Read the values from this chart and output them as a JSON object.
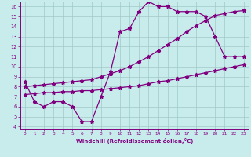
{
  "zigzag_x": [
    0,
    1,
    2,
    3,
    4,
    5,
    6,
    7,
    8,
    9,
    10,
    11,
    12,
    13,
    14,
    15,
    16,
    17,
    18,
    19,
    20,
    21,
    22,
    23
  ],
  "zigzag_y": [
    8.5,
    6.5,
    6.0,
    6.5,
    6.5,
    6.0,
    4.5,
    4.5,
    7.0,
    9.5,
    13.5,
    13.8,
    15.5,
    16.5,
    16.0,
    16.0,
    15.5,
    15.5,
    15.5,
    15.0,
    13.0,
    11.0,
    11.0,
    11.0
  ],
  "upper_x": [
    0,
    1,
    2,
    3,
    4,
    5,
    6,
    7,
    8,
    9,
    10,
    11,
    12,
    13,
    14,
    15,
    16,
    17,
    18,
    19,
    20,
    21,
    22,
    23
  ],
  "upper_y": [
    8.0,
    8.1,
    8.2,
    8.3,
    8.4,
    8.5,
    8.6,
    8.7,
    9.0,
    9.3,
    9.6,
    10.0,
    10.5,
    11.0,
    11.6,
    12.2,
    12.8,
    13.5,
    14.1,
    14.6,
    15.1,
    15.3,
    15.5,
    15.6
  ],
  "lower_x": [
    0,
    1,
    2,
    3,
    4,
    5,
    6,
    7,
    8,
    9,
    10,
    11,
    12,
    13,
    14,
    15,
    16,
    17,
    18,
    19,
    20,
    21,
    22,
    23
  ],
  "lower_y": [
    7.2,
    7.3,
    7.4,
    7.4,
    7.5,
    7.5,
    7.6,
    7.6,
    7.7,
    7.8,
    7.9,
    8.0,
    8.1,
    8.3,
    8.5,
    8.6,
    8.8,
    9.0,
    9.2,
    9.4,
    9.6,
    9.8,
    10.0,
    10.2
  ],
  "color": "#800080",
  "bg_color": "#c8ecec",
  "grid_color": "#a0c8c8",
  "xlabel": "Windchill (Refroidissement éolien,°C)",
  "xlim": [
    -0.5,
    23.5
  ],
  "ylim": [
    3.8,
    16.5
  ],
  "xticks": [
    0,
    1,
    2,
    3,
    4,
    5,
    6,
    7,
    8,
    9,
    10,
    11,
    12,
    13,
    14,
    15,
    16,
    17,
    18,
    19,
    20,
    21,
    22,
    23
  ],
  "yticks": [
    4,
    5,
    6,
    7,
    8,
    9,
    10,
    11,
    12,
    13,
    14,
    15,
    16
  ],
  "marker": "*",
  "markersize": 3.5,
  "linewidth": 0.9
}
